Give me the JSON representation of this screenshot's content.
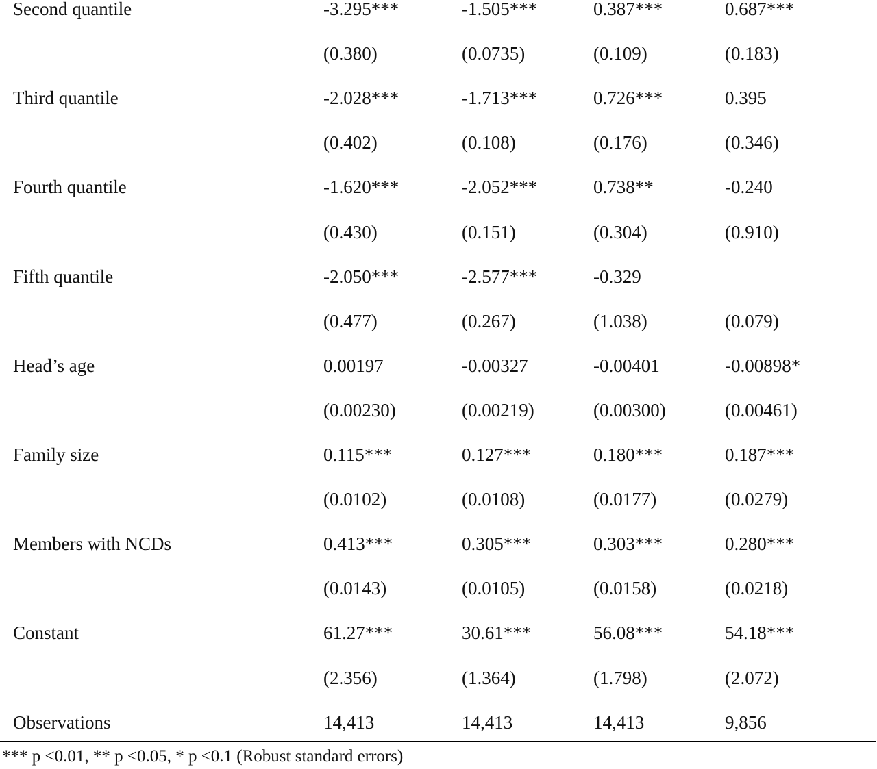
{
  "table": {
    "rows": [
      {
        "label": "Second quantile",
        "values": [
          "-3.295***",
          "-1.505***",
          "0.387***",
          "0.687***"
        ]
      },
      {
        "label": "",
        "values": [
          "(0.380)",
          "(0.0735)",
          "(0.109)",
          "(0.183)"
        ]
      },
      {
        "label": "Third quantile",
        "values": [
          "-2.028***",
          "-1.713***",
          "0.726***",
          "0.395"
        ]
      },
      {
        "label": "",
        "values": [
          "(0.402)",
          "(0.108)",
          "(0.176)",
          "(0.346)"
        ]
      },
      {
        "label": "Fourth quantile",
        "values": [
          "-1.620***",
          "-2.052***",
          "0.738**",
          "-0.240"
        ]
      },
      {
        "label": "",
        "values": [
          "(0.430)",
          "(0.151)",
          "(0.304)",
          "(0.910)"
        ]
      },
      {
        "label": "Fifth quantile",
        "values": [
          "-2.050***",
          "-2.577***",
          "-0.329",
          ""
        ]
      },
      {
        "label": "",
        "values": [
          "(0.477)",
          "(0.267)",
          "(1.038)",
          "(0.079)"
        ]
      },
      {
        "label": "Head’s age",
        "values": [
          "0.00197",
          "-0.00327",
          "-0.00401",
          "-0.00898*"
        ]
      },
      {
        "label": "",
        "values": [
          "(0.00230)",
          "(0.00219)",
          "(0.00300)",
          "(0.00461)"
        ]
      },
      {
        "label": "Family size",
        "values": [
          "0.115***",
          "0.127***",
          "0.180***",
          "0.187***"
        ]
      },
      {
        "label": "",
        "values": [
          "(0.0102)",
          "(0.0108)",
          "(0.0177)",
          "(0.0279)"
        ]
      },
      {
        "label": "Members with NCDs",
        "values": [
          "0.413***",
          "0.305***",
          "0.303***",
          "0.280***"
        ]
      },
      {
        "label": "",
        "values": [
          "(0.0143)",
          "(0.0105)",
          "(0.0158)",
          "(0.0218)"
        ]
      },
      {
        "label": "Constant",
        "values": [
          "61.27***",
          "30.61***",
          "56.08***",
          "54.18***"
        ]
      },
      {
        "label": "",
        "values": [
          "(2.356)",
          "(1.364)",
          "(1.798)",
          "(2.072)"
        ]
      },
      {
        "label": "Observations",
        "values": [
          "14,413",
          "14,413",
          "14,413",
          "9,856"
        ]
      }
    ]
  },
  "footnote": "*** p <0.01, ** p <0.05, * p <0.1 (Robust standard errors)"
}
